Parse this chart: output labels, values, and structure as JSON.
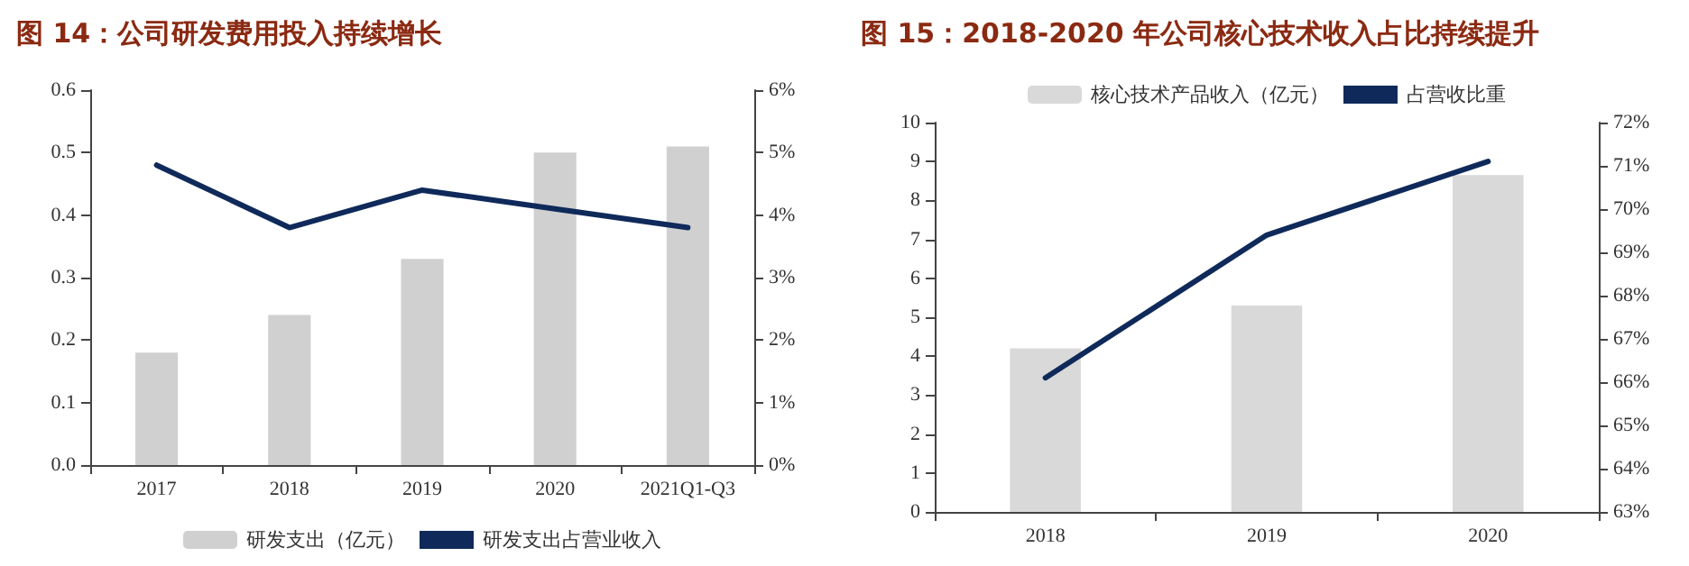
{
  "chart_data": [
    {
      "type": "bar",
      "title": "图 14：公司研发费用投入持续增长",
      "categories": [
        "2017",
        "2018",
        "2019",
        "2020",
        "2021Q1-Q3"
      ],
      "series": [
        {
          "name": "研发支出（亿元）",
          "color": "#d0d0d0",
          "values": [
            0.18,
            0.24,
            0.33,
            0.5,
            0.51
          ]
        },
        {
          "name": "研发支出占营业收入",
          "type": "line",
          "axis": "y2",
          "color": "#0f2a5a",
          "values": [
            4.8,
            3.8,
            4.4,
            4.1,
            3.8
          ]
        }
      ],
      "ylim": [
        0,
        0.6
      ],
      "yticks": [
        {
          "value": 0,
          "label": "0.0"
        },
        0.1,
        0.2,
        0.3,
        0.4,
        0.5,
        0.6
      ],
      "y2lim": [
        0,
        6
      ],
      "y2ticks": [
        {
          "value": 0,
          "label": "0%"
        },
        {
          "value": 1,
          "label": "1%"
        },
        {
          "value": 2,
          "label": "2%"
        },
        {
          "value": 3,
          "label": "3%"
        },
        {
          "value": 4,
          "label": "4%"
        },
        {
          "value": 5,
          "label": "5%"
        },
        {
          "value": 6,
          "label": "6%"
        }
      ],
      "legend": "bottom"
    },
    {
      "type": "bar",
      "title": "图 15：2018-2020 年公司核心技术收入占比持续提升",
      "categories": [
        "2018",
        "2019",
        "2020"
      ],
      "series": [
        {
          "name": "核心技术产品收入（亿元）",
          "color": "#d9d9d9",
          "values": [
            4.2,
            5.3,
            8.65
          ]
        },
        {
          "name": "占营收比重",
          "type": "line",
          "axis": "y2",
          "color": "#0f2a5a",
          "values": [
            66.1,
            69.4,
            71.1
          ]
        }
      ],
      "ylim": [
        0,
        10
      ],
      "yticks": [
        0,
        1,
        2,
        3,
        4,
        5,
        6,
        7,
        8,
        9,
        10
      ],
      "y2lim": [
        63,
        72
      ],
      "y2ticks": [
        {
          "value": 63,
          "label": "63%"
        },
        {
          "value": 64,
          "label": "64%"
        },
        {
          "value": 65,
          "label": "65%"
        },
        {
          "value": 66,
          "label": "66%"
        },
        {
          "value": 67,
          "label": "67%"
        },
        {
          "value": 68,
          "label": "68%"
        },
        {
          "value": 69,
          "label": "69%"
        },
        {
          "value": 70,
          "label": "70%"
        },
        {
          "value": 71,
          "label": "71%"
        },
        {
          "value": 72,
          "label": "72%"
        }
      ],
      "legend": "top"
    }
  ]
}
